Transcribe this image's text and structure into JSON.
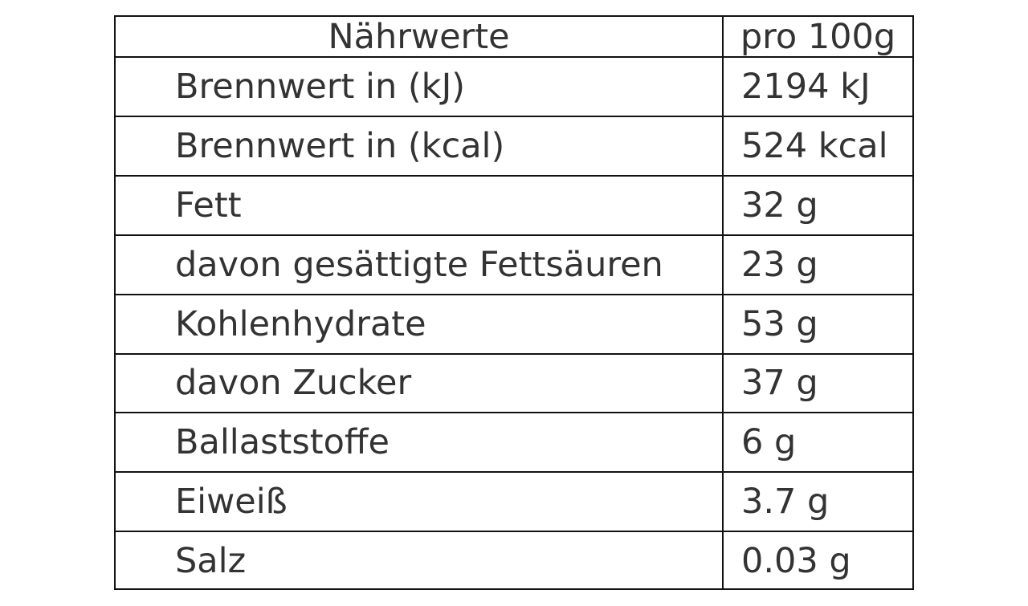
{
  "table": {
    "header": [
      "Nährwerte",
      "pro 100g"
    ],
    "rows": [
      [
        "Brennwert in (kJ)",
        "2194 kJ"
      ],
      [
        "Brennwert in (kcal)",
        "524 kcal"
      ],
      [
        "Fett",
        "32 g"
      ],
      [
        "davon gesättigte Fettsäuren",
        "23 g"
      ],
      [
        "Kohlenhydrate",
        "53 g"
      ],
      [
        "davon Zucker",
        "37 g"
      ],
      [
        "Ballaststoffe",
        "6 g"
      ],
      [
        "Eiweiß",
        "3.7 g"
      ],
      [
        "Salz",
        "0.03 g"
      ]
    ]
  }
}
